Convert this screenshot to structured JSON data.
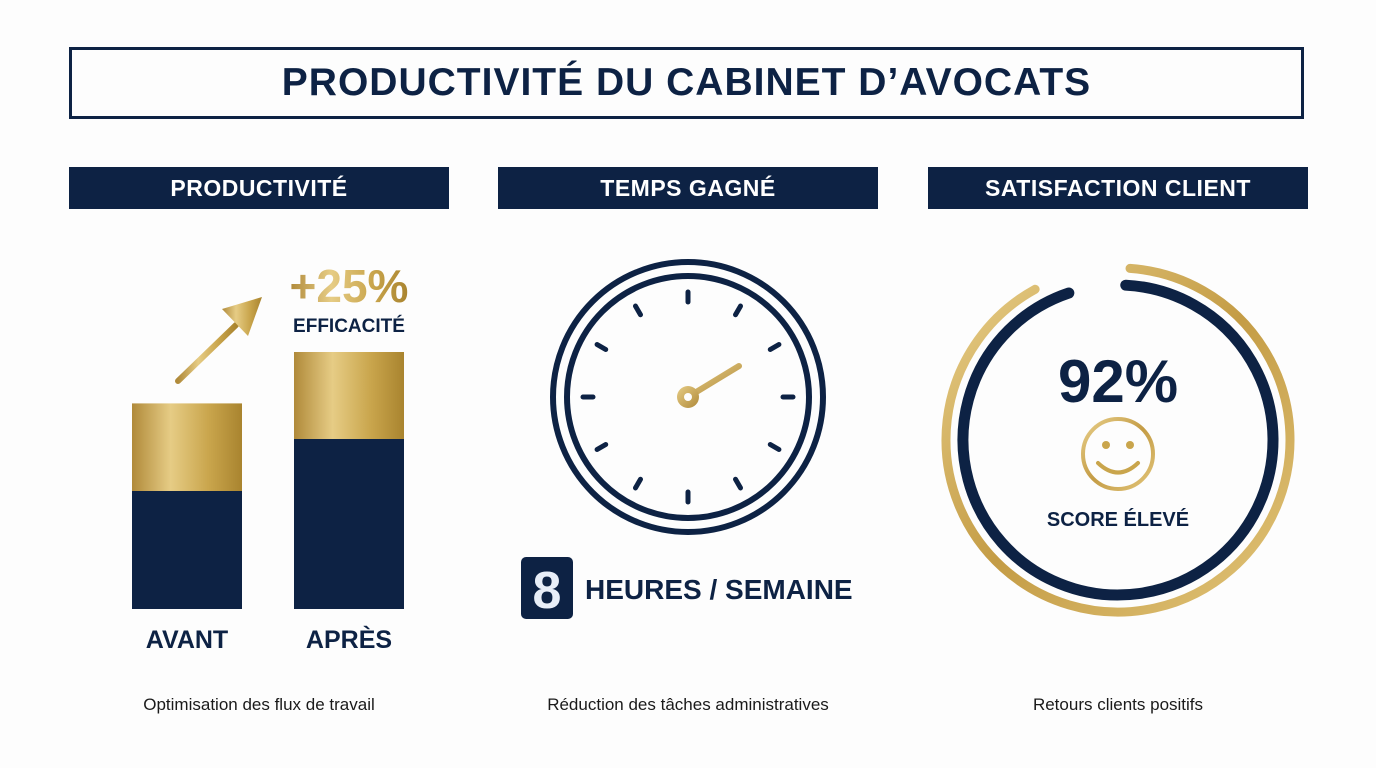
{
  "title": "PRODUCTIVITÉ DU CABINET D’AVOCATS",
  "sections": {
    "productivity": {
      "header": "PRODUCTIVITÉ",
      "badge_value": "+25%",
      "badge_label": "EFFICACITÉ",
      "caption": "Optimisation des flux de travail"
    },
    "time": {
      "header": "TEMPS GAGNÉ",
      "digit": "8",
      "unit_label": "HEURES / SEMAINE",
      "caption": "Réduction des tâches administratives"
    },
    "satisfaction": {
      "header": "SATISFACTION CLIENT",
      "score": "92%",
      "score_label": "SCORE ÉLEVÉ",
      "caption": "Retours clients positifs"
    }
  },
  "colors": {
    "navy": "#0d2244",
    "gold": "#c9a54c",
    "gold_light": "#e3c77c"
  },
  "icons": [
    "growth-arrow-icon",
    "clock-icon",
    "smiley-icon"
  ],
  "chart_data": [
    {
      "type": "bar",
      "categories": [
        "AVANT",
        "APRÈS"
      ],
      "values": [
        100,
        125
      ],
      "annotation": "+25% EFFICACITÉ",
      "grid": false
    },
    {
      "type": "pie",
      "values": [
        92
      ],
      "label": "92%",
      "annotation": "SCORE ÉLEVÉ"
    }
  ]
}
